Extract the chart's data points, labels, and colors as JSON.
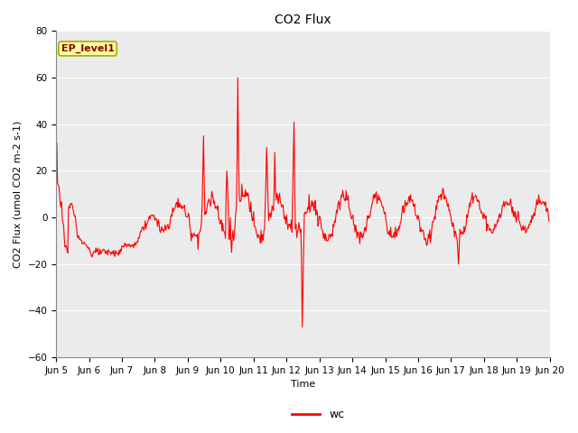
{
  "title": "CO2 Flux",
  "xlabel": "Time",
  "ylabel": "CO2 Flux (umol CO2 m-2 s-1)",
  "ylim": [
    -60,
    80
  ],
  "yticks": [
    -60,
    -40,
    -20,
    0,
    20,
    40,
    60,
    80
  ],
  "line_color": "#FF0000",
  "line_width": 0.8,
  "legend_label": "wc",
  "annotation_text": "EP_level1",
  "plot_bg": "#EBEBEB",
  "fig_bg": "#FFFFFF",
  "grid_color": "#FFFFFF",
  "annotation_facecolor": "#FFFFA0",
  "annotation_edgecolor": "#AAAA00",
  "annotation_textcolor": "#8B0000",
  "annotation_fontsize": 8,
  "title_fontsize": 10,
  "axis_label_fontsize": 8,
  "tick_fontsize": 7.5,
  "legend_fontsize": 9
}
